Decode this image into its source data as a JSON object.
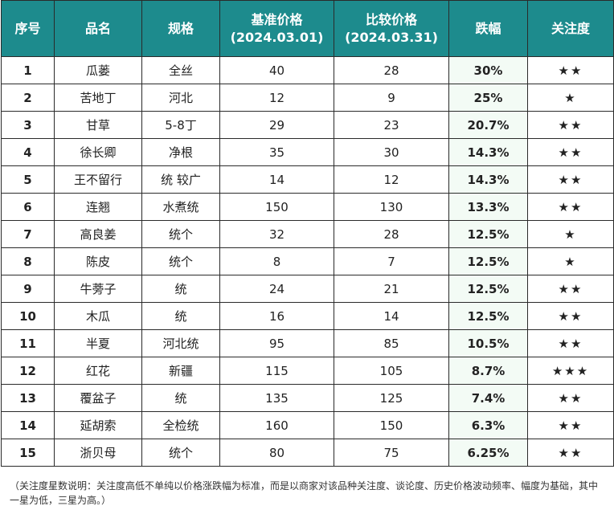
{
  "table": {
    "headers": {
      "no": "序号",
      "name": "品名",
      "spec": "规格",
      "base_price_title": "基准价格",
      "base_price_date": "(2024.03.01)",
      "compare_price_title": "比较价格",
      "compare_price_date": "(2024.03.31)",
      "change": "跌幅",
      "attention": "关注度"
    },
    "rows": [
      {
        "no": "1",
        "name": "瓜蒌",
        "spec": "全丝",
        "base": "40",
        "compare": "28",
        "change": "30%",
        "stars": "★★",
        "stars_count": 2
      },
      {
        "no": "2",
        "name": "苦地丁",
        "spec": "河北",
        "base": "12",
        "compare": "9",
        "change": "25%",
        "stars": "★",
        "stars_count": 1
      },
      {
        "no": "3",
        "name": "甘草",
        "spec": "5-8丁",
        "base": "29",
        "compare": "23",
        "change": "20.7%",
        "stars": "★★",
        "stars_count": 2
      },
      {
        "no": "4",
        "name": "徐长卿",
        "spec": "净根",
        "base": "35",
        "compare": "30",
        "change": "14.3%",
        "stars": "★★",
        "stars_count": 2
      },
      {
        "no": "5",
        "name": "王不留行",
        "spec": "统 较广",
        "base": "14",
        "compare": "12",
        "change": "14.3%",
        "stars": "★★",
        "stars_count": 2
      },
      {
        "no": "6",
        "name": "连翘",
        "spec": "水煮统",
        "base": "150",
        "compare": "130",
        "change": "13.3%",
        "stars": "★★",
        "stars_count": 2
      },
      {
        "no": "7",
        "name": "高良姜",
        "spec": "统个",
        "base": "32",
        "compare": "28",
        "change": "12.5%",
        "stars": "★",
        "stars_count": 1
      },
      {
        "no": "8",
        "name": "陈皮",
        "spec": "统个",
        "base": "8",
        "compare": "7",
        "change": "12.5%",
        "stars": "★",
        "stars_count": 1
      },
      {
        "no": "9",
        "name": "牛蒡子",
        "spec": "统",
        "base": "24",
        "compare": "21",
        "change": "12.5%",
        "stars": "★★",
        "stars_count": 2
      },
      {
        "no": "10",
        "name": "木瓜",
        "spec": "统",
        "base": "16",
        "compare": "14",
        "change": "12.5%",
        "stars": "★★",
        "stars_count": 2
      },
      {
        "no": "11",
        "name": "半夏",
        "spec": "河北统",
        "base": "95",
        "compare": "85",
        "change": "10.5%",
        "stars": "★★",
        "stars_count": 2
      },
      {
        "no": "12",
        "name": "红花",
        "spec": "新疆",
        "base": "115",
        "compare": "105",
        "change": "8.7%",
        "stars": "★★★",
        "stars_count": 3
      },
      {
        "no": "13",
        "name": "覆盆子",
        "spec": "统",
        "base": "135",
        "compare": "125",
        "change": "7.4%",
        "stars": "★★",
        "stars_count": 2
      },
      {
        "no": "14",
        "name": "延胡索",
        "spec": "全检统",
        "base": "160",
        "compare": "150",
        "change": "6.3%",
        "stars": "★★",
        "stars_count": 2
      },
      {
        "no": "15",
        "name": "浙贝母",
        "spec": "统个",
        "base": "80",
        "compare": "75",
        "change": "6.25%",
        "stars": "★★",
        "stars_count": 2
      }
    ]
  },
  "footnote": "（关注度星数说明：关注度高低不单纯以价格涨跌幅为标准，而是以商家对该品种关注度、谈论度、历史价格波动频率、幅度为基础，其中一星为低，三星为高。）",
  "colors": {
    "header_bg": "#1d8b8d",
    "change_text": "#18b24a",
    "star": "#f5b23a"
  }
}
